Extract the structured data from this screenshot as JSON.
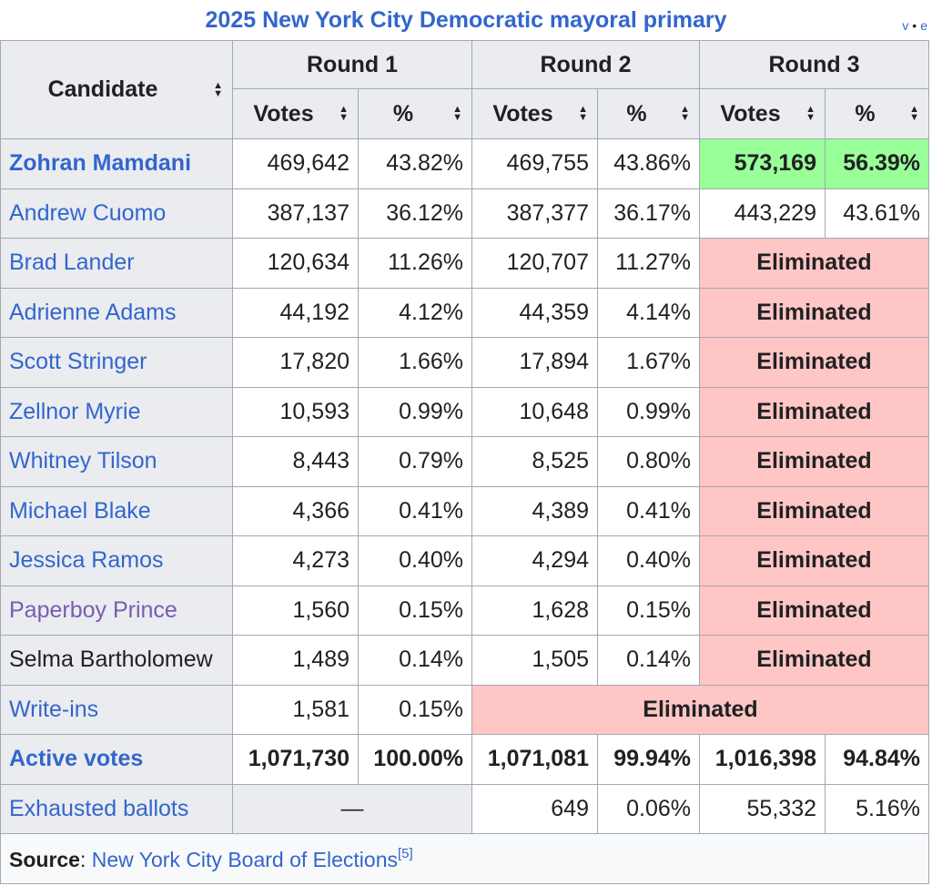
{
  "caption": {
    "title": "2025 New York City Democratic mayoral primary",
    "vte": [
      "v",
      "e"
    ]
  },
  "header": {
    "candidate": "Candidate",
    "rounds": [
      "Round 1",
      "Round 2",
      "Round 3"
    ],
    "sub": [
      "Votes",
      "%",
      "Votes",
      "%",
      "Votes",
      "%"
    ]
  },
  "rows": [
    {
      "name": "Zohran Mamdani",
      "r1v": "469,642",
      "r1p": "43.82%",
      "r2v": "469,755",
      "r2p": "43.86%",
      "r3v": "573,169",
      "r3p": "56.39%"
    },
    {
      "name": "Andrew Cuomo",
      "r1v": "387,137",
      "r1p": "36.12%",
      "r2v": "387,377",
      "r2p": "36.17%",
      "r3v": "443,229",
      "r3p": "43.61%"
    },
    {
      "name": "Brad Lander",
      "r1v": "120,634",
      "r1p": "11.26%",
      "r2v": "120,707",
      "r2p": "11.27%",
      "r3": "Eliminated"
    },
    {
      "name": "Adrienne Adams",
      "r1v": "44,192",
      "r1p": "4.12%",
      "r2v": "44,359",
      "r2p": "4.14%",
      "r3": "Eliminated"
    },
    {
      "name": "Scott Stringer",
      "r1v": "17,820",
      "r1p": "1.66%",
      "r2v": "17,894",
      "r2p": "1.67%",
      "r3": "Eliminated"
    },
    {
      "name": "Zellnor Myrie",
      "r1v": "10,593",
      "r1p": "0.99%",
      "r2v": "10,648",
      "r2p": "0.99%",
      "r3": "Eliminated"
    },
    {
      "name": "Whitney Tilson",
      "r1v": "8,443",
      "r1p": "0.79%",
      "r2v": "8,525",
      "r2p": "0.80%",
      "r3": "Eliminated"
    },
    {
      "name": "Michael Blake",
      "r1v": "4,366",
      "r1p": "0.41%",
      "r2v": "4,389",
      "r2p": "0.41%",
      "r3": "Eliminated"
    },
    {
      "name": "Jessica Ramos",
      "r1v": "4,273",
      "r1p": "0.40%",
      "r2v": "4,294",
      "r2p": "0.40%",
      "r3": "Eliminated"
    },
    {
      "name": "Paperboy Prince",
      "r1v": "1,560",
      "r1p": "0.15%",
      "r2v": "1,628",
      "r2p": "0.15%",
      "r3": "Eliminated"
    },
    {
      "name": "Selma Bartholomew",
      "r1v": "1,489",
      "r1p": "0.14%",
      "r2v": "1,505",
      "r2p": "0.14%",
      "r3": "Eliminated"
    },
    {
      "name": "Write-ins",
      "r1v": "1,581",
      "r1p": "0.15%",
      "r23": "Eliminated"
    }
  ],
  "active": {
    "label": "Active votes",
    "r1v": "1,071,730",
    "r1p": "100.00%",
    "r2v": "1,071,081",
    "r2p": "99.94%",
    "r3v": "1,016,398",
    "r3p": "94.84%"
  },
  "exhausted": {
    "label": "Exhausted ballots",
    "r1": "—",
    "r2v": "649",
    "r2p": "0.06%",
    "r3v": "55,332",
    "r3p": "5.16%"
  },
  "source": {
    "label": "Source",
    "sep": ": ",
    "link": "New York City Board of Elections",
    "ref": "[5]"
  },
  "colors": {
    "link": "#3366cc",
    "visited_link": "#795cb2",
    "header_bg": "#eaecf0",
    "winner_bg": "#99ff99",
    "eliminated_bg": "#ffc6c6",
    "border": "#a2a9b1"
  },
  "icons": {
    "sort": "sort-icon"
  }
}
